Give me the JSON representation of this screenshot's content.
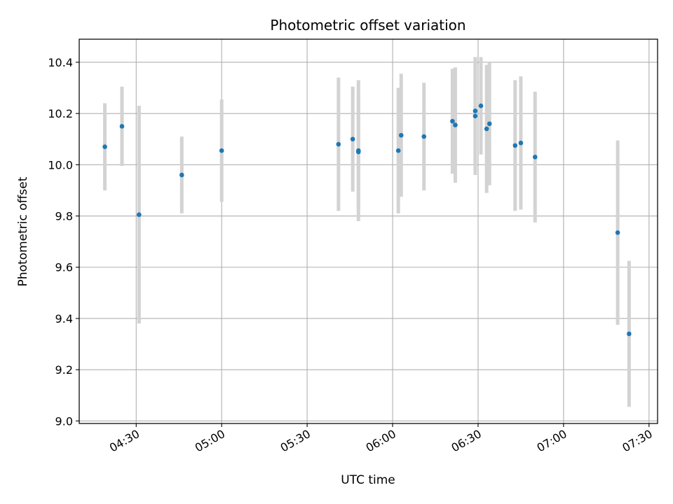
{
  "chart_data": {
    "type": "scatter",
    "title": "Photometric offset variation",
    "xlabel": "UTC time",
    "ylabel": "Photometric offset",
    "x_ticks": [
      "04:30",
      "05:00",
      "05:30",
      "06:00",
      "06:30",
      "07:00",
      "07:30"
    ],
    "y_ticks": [
      "9.0",
      "9.2",
      "9.4",
      "9.6",
      "9.8",
      "10.0",
      "10.2",
      "10.4"
    ],
    "xlim": [
      "04:10",
      "07:33"
    ],
    "ylim": [
      8.99,
      10.49
    ],
    "grid": true,
    "point_color": "#1f77b4",
    "errorbar_color": "#d3d3d3",
    "series": [
      {
        "points": [
          {
            "x": "04:19",
            "y": 10.07,
            "yerr": 0.17
          },
          {
            "x": "04:25",
            "y": 10.15,
            "yerr": 0.155
          },
          {
            "x": "04:31",
            "y": 9.805,
            "yerr": 0.425
          },
          {
            "x": "04:46",
            "y": 9.96,
            "yerr": 0.15
          },
          {
            "x": "05:00",
            "y": 10.055,
            "yerr": 0.2
          },
          {
            "x": "05:41",
            "y": 10.08,
            "yerr": 0.26
          },
          {
            "x": "05:46",
            "y": 10.1,
            "yerr": 0.205
          },
          {
            "x": "05:48",
            "y": 10.055,
            "yerr": 0.275
          },
          {
            "x": "05:48",
            "y": 10.05,
            "yerr": 0.22
          },
          {
            "x": "06:02",
            "y": 10.055,
            "yerr": 0.245
          },
          {
            "x": "06:03",
            "y": 10.115,
            "yerr": 0.24
          },
          {
            "x": "06:11",
            "y": 10.11,
            "yerr": 0.21
          },
          {
            "x": "06:21",
            "y": 10.17,
            "yerr": 0.205
          },
          {
            "x": "06:22",
            "y": 10.155,
            "yerr": 0.225
          },
          {
            "x": "06:29",
            "y": 10.19,
            "yerr": 0.23
          },
          {
            "x": "06:29",
            "y": 10.21,
            "yerr": 0.21
          },
          {
            "x": "06:31",
            "y": 10.23,
            "yerr": 0.19
          },
          {
            "x": "06:33",
            "y": 10.14,
            "yerr": 0.25
          },
          {
            "x": "06:34",
            "y": 10.16,
            "yerr": 0.24
          },
          {
            "x": "06:43",
            "y": 10.075,
            "yerr": 0.255
          },
          {
            "x": "06:45",
            "y": 10.085,
            "yerr": 0.26
          },
          {
            "x": "06:50",
            "y": 10.03,
            "yerr": 0.255
          },
          {
            "x": "07:19",
            "y": 9.735,
            "yerr": 0.36
          },
          {
            "x": "07:23",
            "y": 9.34,
            "yerr": 0.285
          }
        ]
      }
    ]
  }
}
